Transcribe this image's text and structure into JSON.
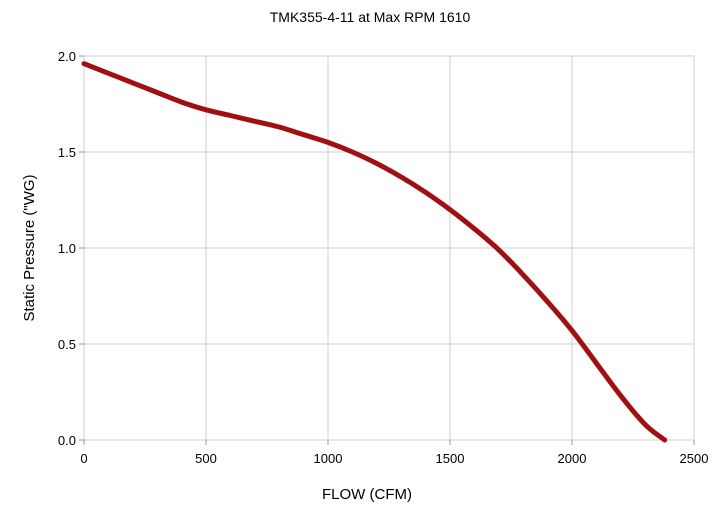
{
  "chart_data": {
    "type": "line",
    "title": "TMK355-4-11 at Max RPM 1610",
    "xlabel": "FLOW (CFM)",
    "ylabel": "Static Pressure (\"WG)",
    "xlim": [
      0,
      2500
    ],
    "ylim": [
      0,
      2.0
    ],
    "xticks": [
      "0",
      "500",
      "1000",
      "1500",
      "2000",
      "2500"
    ],
    "yticks": [
      "0.0",
      "0.5",
      "1.0",
      "1.5",
      "2.0"
    ],
    "grid": true,
    "legend": "none",
    "series": [
      {
        "color": "#a01010",
        "x": [
          0,
          100,
          200,
          300,
          400,
          500,
          600,
          700,
          800,
          900,
          1000,
          1100,
          1200,
          1300,
          1400,
          1500,
          1600,
          1700,
          1800,
          1900,
          2000,
          2100,
          2200,
          2300,
          2380
        ],
        "y": [
          1.96,
          1.91,
          1.86,
          1.81,
          1.76,
          1.72,
          1.69,
          1.66,
          1.63,
          1.59,
          1.55,
          1.5,
          1.44,
          1.37,
          1.29,
          1.2,
          1.1,
          0.99,
          0.86,
          0.72,
          0.57,
          0.4,
          0.23,
          0.08,
          0.0
        ]
      }
    ]
  }
}
